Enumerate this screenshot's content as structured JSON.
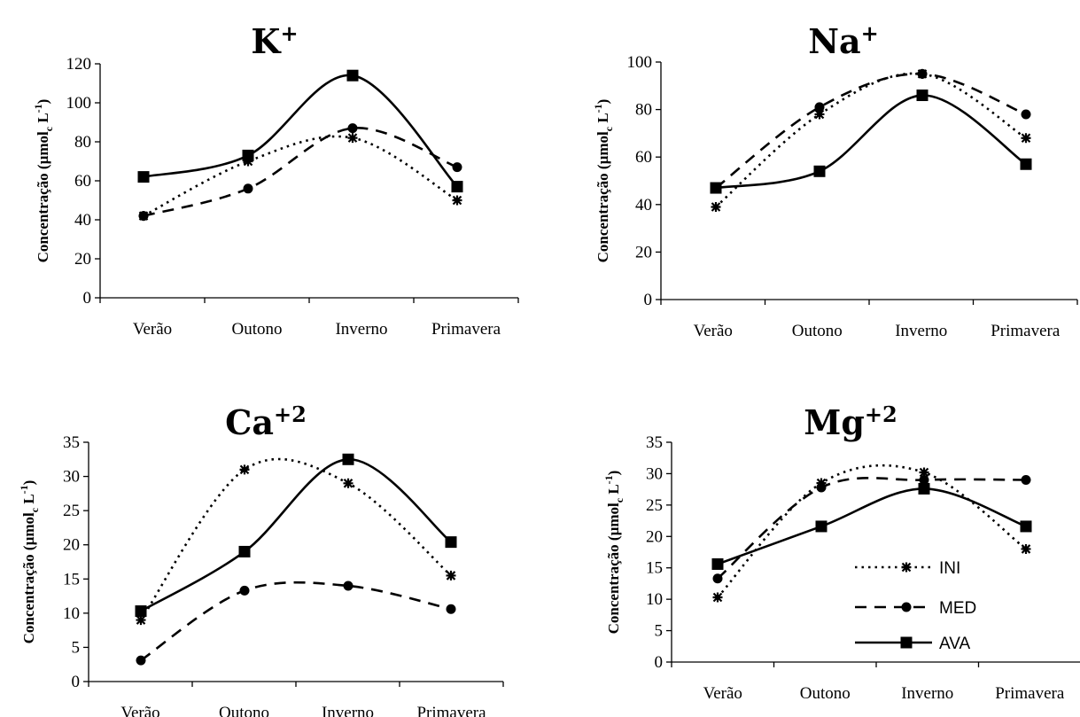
{
  "chart_data": [
    {
      "type": "line",
      "title_main": "K",
      "title_sup": "+",
      "ylabel_main": "Concentração (µmol",
      "ylabel_sub": "c",
      "ylabel_tail": " L",
      "ylabel_sup": "-1",
      "ylabel_close": ")",
      "categories": [
        "Verão",
        "Outono",
        "Inverno",
        "Primavera"
      ],
      "ylim": [
        0,
        120
      ],
      "yticks": [
        "0",
        "20",
        "40",
        "60",
        "80",
        "100",
        "120"
      ],
      "series": [
        {
          "key": "INI",
          "values": [
            42,
            70,
            82,
            50
          ]
        },
        {
          "key": "MED",
          "values": [
            42,
            56,
            87,
            67
          ]
        },
        {
          "key": "AVA",
          "values": [
            62,
            73,
            114,
            57
          ]
        }
      ]
    },
    {
      "type": "line",
      "title_main": "Na",
      "title_sup": "+",
      "ylabel_main": "Concentração (µmol",
      "ylabel_sub": "c",
      "ylabel_tail": " L",
      "ylabel_sup": "-1",
      "ylabel_close": ")",
      "categories": [
        "Verão",
        "Outono",
        "Inverno",
        "Primavera"
      ],
      "ylim": [
        0,
        100
      ],
      "yticks": [
        "0",
        "20",
        "40",
        "60",
        "80",
        "100"
      ],
      "series": [
        {
          "key": "INI",
          "values": [
            39,
            78,
            95,
            68
          ]
        },
        {
          "key": "MED",
          "values": [
            47,
            81,
            95,
            78
          ]
        },
        {
          "key": "AVA",
          "values": [
            47,
            54,
            86,
            57
          ]
        }
      ]
    },
    {
      "type": "line",
      "title_main": "Ca",
      "title_sup": "+2",
      "ylabel_main": "Concentração (µmol",
      "ylabel_sub": "c",
      "ylabel_tail": " L",
      "ylabel_sup": "-1",
      "ylabel_close": ")",
      "categories": [
        "Verão",
        "Outono",
        "Inverno",
        "Primavera"
      ],
      "ylim": [
        0,
        35
      ],
      "yticks": [
        "0",
        "5",
        "10",
        "15",
        "20",
        "25",
        "30",
        "35"
      ],
      "series": [
        {
          "key": "INI",
          "values": [
            9,
            31,
            29,
            15.5
          ]
        },
        {
          "key": "MED",
          "values": [
            3.1,
            13.3,
            14,
            10.6
          ]
        },
        {
          "key": "AVA",
          "values": [
            10.3,
            19,
            32.5,
            20.4
          ]
        }
      ]
    },
    {
      "type": "line",
      "title_main": "Mg",
      "title_sup": "+2",
      "ylabel_main": "Concentração (µmol",
      "ylabel_sub": "c",
      "ylabel_tail": " L",
      "ylabel_sup": "-1",
      "ylabel_close": ")",
      "categories": [
        "Verão",
        "Outono",
        "Inverno",
        "Primavera"
      ],
      "ylim": [
        0,
        35
      ],
      "yticks": [
        "0",
        "5",
        "10",
        "15",
        "20",
        "25",
        "30",
        "35"
      ],
      "legend_placement": "bottom-right",
      "series": [
        {
          "key": "INI",
          "values": [
            10.3,
            28.5,
            30.2,
            18
          ]
        },
        {
          "key": "MED",
          "values": [
            13.3,
            27.8,
            29,
            29
          ]
        },
        {
          "key": "AVA",
          "values": [
            15.6,
            21.6,
            27.6,
            21.6
          ]
        }
      ]
    }
  ],
  "legend": [
    {
      "key": "INI",
      "label": "INI"
    },
    {
      "key": "MED",
      "label": "MED"
    },
    {
      "key": "AVA",
      "label": "AVA"
    }
  ]
}
